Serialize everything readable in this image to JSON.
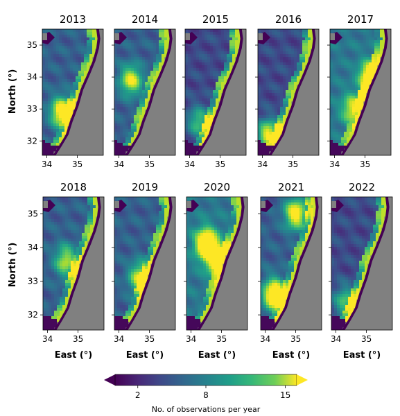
{
  "figure": {
    "y_axis_label": "North (°)",
    "x_axis_label": "East (°)",
    "x_ticks": [
      "34",
      "35"
    ],
    "y_ticks": [
      "32",
      "33",
      "34",
      "35"
    ],
    "land_color": "#808080",
    "coast_color": "#440154",
    "panels": [
      {
        "year": "2013",
        "pattern": "moderate",
        "hotspots": [
          [
            34.5,
            32.9,
            0.9
          ]
        ]
      },
      {
        "year": "2014",
        "pattern": "moderate",
        "hotspots": [
          [
            34.4,
            33.9,
            0.7
          ]
        ]
      },
      {
        "year": "2015",
        "pattern": "low",
        "hotspots": [
          [
            34.3,
            32.6,
            0.5
          ]
        ]
      },
      {
        "year": "2016",
        "pattern": "low",
        "hotspots": [
          [
            34.2,
            32.2,
            0.8
          ]
        ]
      },
      {
        "year": "2017",
        "pattern": "high",
        "hotspots": [
          [
            35.2,
            34.0,
            1.0
          ],
          [
            34.6,
            33.0,
            0.6
          ]
        ]
      },
      {
        "year": "2018",
        "pattern": "moderate",
        "hotspots": [
          [
            34.6,
            33.6,
            0.6
          ]
        ]
      },
      {
        "year": "2019",
        "pattern": "moderate",
        "hotspots": [
          [
            34.7,
            33.1,
            0.7
          ]
        ]
      },
      {
        "year": "2020",
        "pattern": "high",
        "hotspots": [
          [
            34.5,
            34.1,
            1.0
          ],
          [
            34.9,
            33.6,
            0.9
          ]
        ]
      },
      {
        "year": "2021",
        "pattern": "moderate",
        "hotspots": [
          [
            34.3,
            32.6,
            1.0
          ],
          [
            35.0,
            35.0,
            0.8
          ]
        ]
      },
      {
        "year": "2022",
        "pattern": "low",
        "hotspots": [
          [
            34.3,
            32.4,
            0.5
          ]
        ]
      }
    ]
  },
  "colorbar": {
    "label": "No. of observations per year",
    "ticks": [
      "2",
      "8",
      "15"
    ],
    "tick_values": [
      2,
      8,
      15
    ],
    "range": [
      0,
      16
    ],
    "extend": "both",
    "colormap": "viridis"
  }
}
